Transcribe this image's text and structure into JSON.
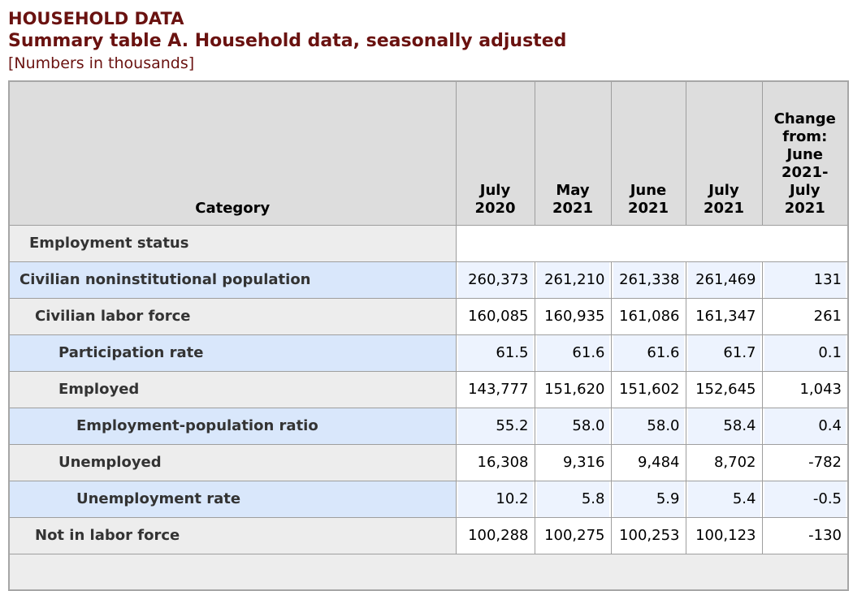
{
  "page": {
    "kicker": "HOUSEHOLD DATA",
    "title": "Summary table A. Household data, seasonally adjusted",
    "units_note": "[Numbers in thousands]"
  },
  "table": {
    "category_header": "Category",
    "column_headers": [
      "July\n2020",
      "May\n2021",
      "June\n2021",
      "July\n2021",
      "Change\nfrom:\nJune\n2021-\nJuly\n2021"
    ],
    "rows": [
      {
        "label": "Employment status",
        "indent": "section",
        "type": "section",
        "values": []
      },
      {
        "label": "Civilian noninstitutional population",
        "indent": 0,
        "type": "data",
        "values": [
          "260,373",
          "261,210",
          "261,338",
          "261,469",
          "131"
        ]
      },
      {
        "label": "Civilian labor force",
        "indent": 1,
        "type": "data",
        "values": [
          "160,085",
          "160,935",
          "161,086",
          "161,347",
          "261"
        ]
      },
      {
        "label": "Participation rate",
        "indent": 2,
        "type": "data",
        "values": [
          "61.5",
          "61.6",
          "61.6",
          "61.7",
          "0.1"
        ]
      },
      {
        "label": "Employed",
        "indent": 2,
        "type": "data",
        "values": [
          "143,777",
          "151,620",
          "151,602",
          "152,645",
          "1,043"
        ]
      },
      {
        "label": "Employment-population ratio",
        "indent": 3,
        "type": "data",
        "values": [
          "55.2",
          "58.0",
          "58.0",
          "58.4",
          "0.4"
        ]
      },
      {
        "label": "Unemployed",
        "indent": 2,
        "type": "data",
        "values": [
          "16,308",
          "9,316",
          "9,484",
          "8,702",
          "-782"
        ]
      },
      {
        "label": "Unemployment rate",
        "indent": 3,
        "type": "data",
        "values": [
          "10.2",
          "5.8",
          "5.9",
          "5.4",
          "-0.5"
        ]
      },
      {
        "label": "Not in labor force",
        "indent": 1,
        "type": "data",
        "values": [
          "100,288",
          "100,275",
          "100,253",
          "100,123",
          "-130"
        ]
      },
      {
        "label": "",
        "indent": "section",
        "type": "section-partial",
        "values": []
      }
    ],
    "colors": {
      "heading_maroon": "#6A1210",
      "header_bg": "#DDDDDD",
      "row_gray_label_bg": "#EDEDED",
      "row_blue_label_bg": "#D9E7FB",
      "row_blue_value_bg": "#EDF3FE",
      "grid_border": "#9E9E9E",
      "label_text": "#333333",
      "value_text": "#000000"
    }
  }
}
